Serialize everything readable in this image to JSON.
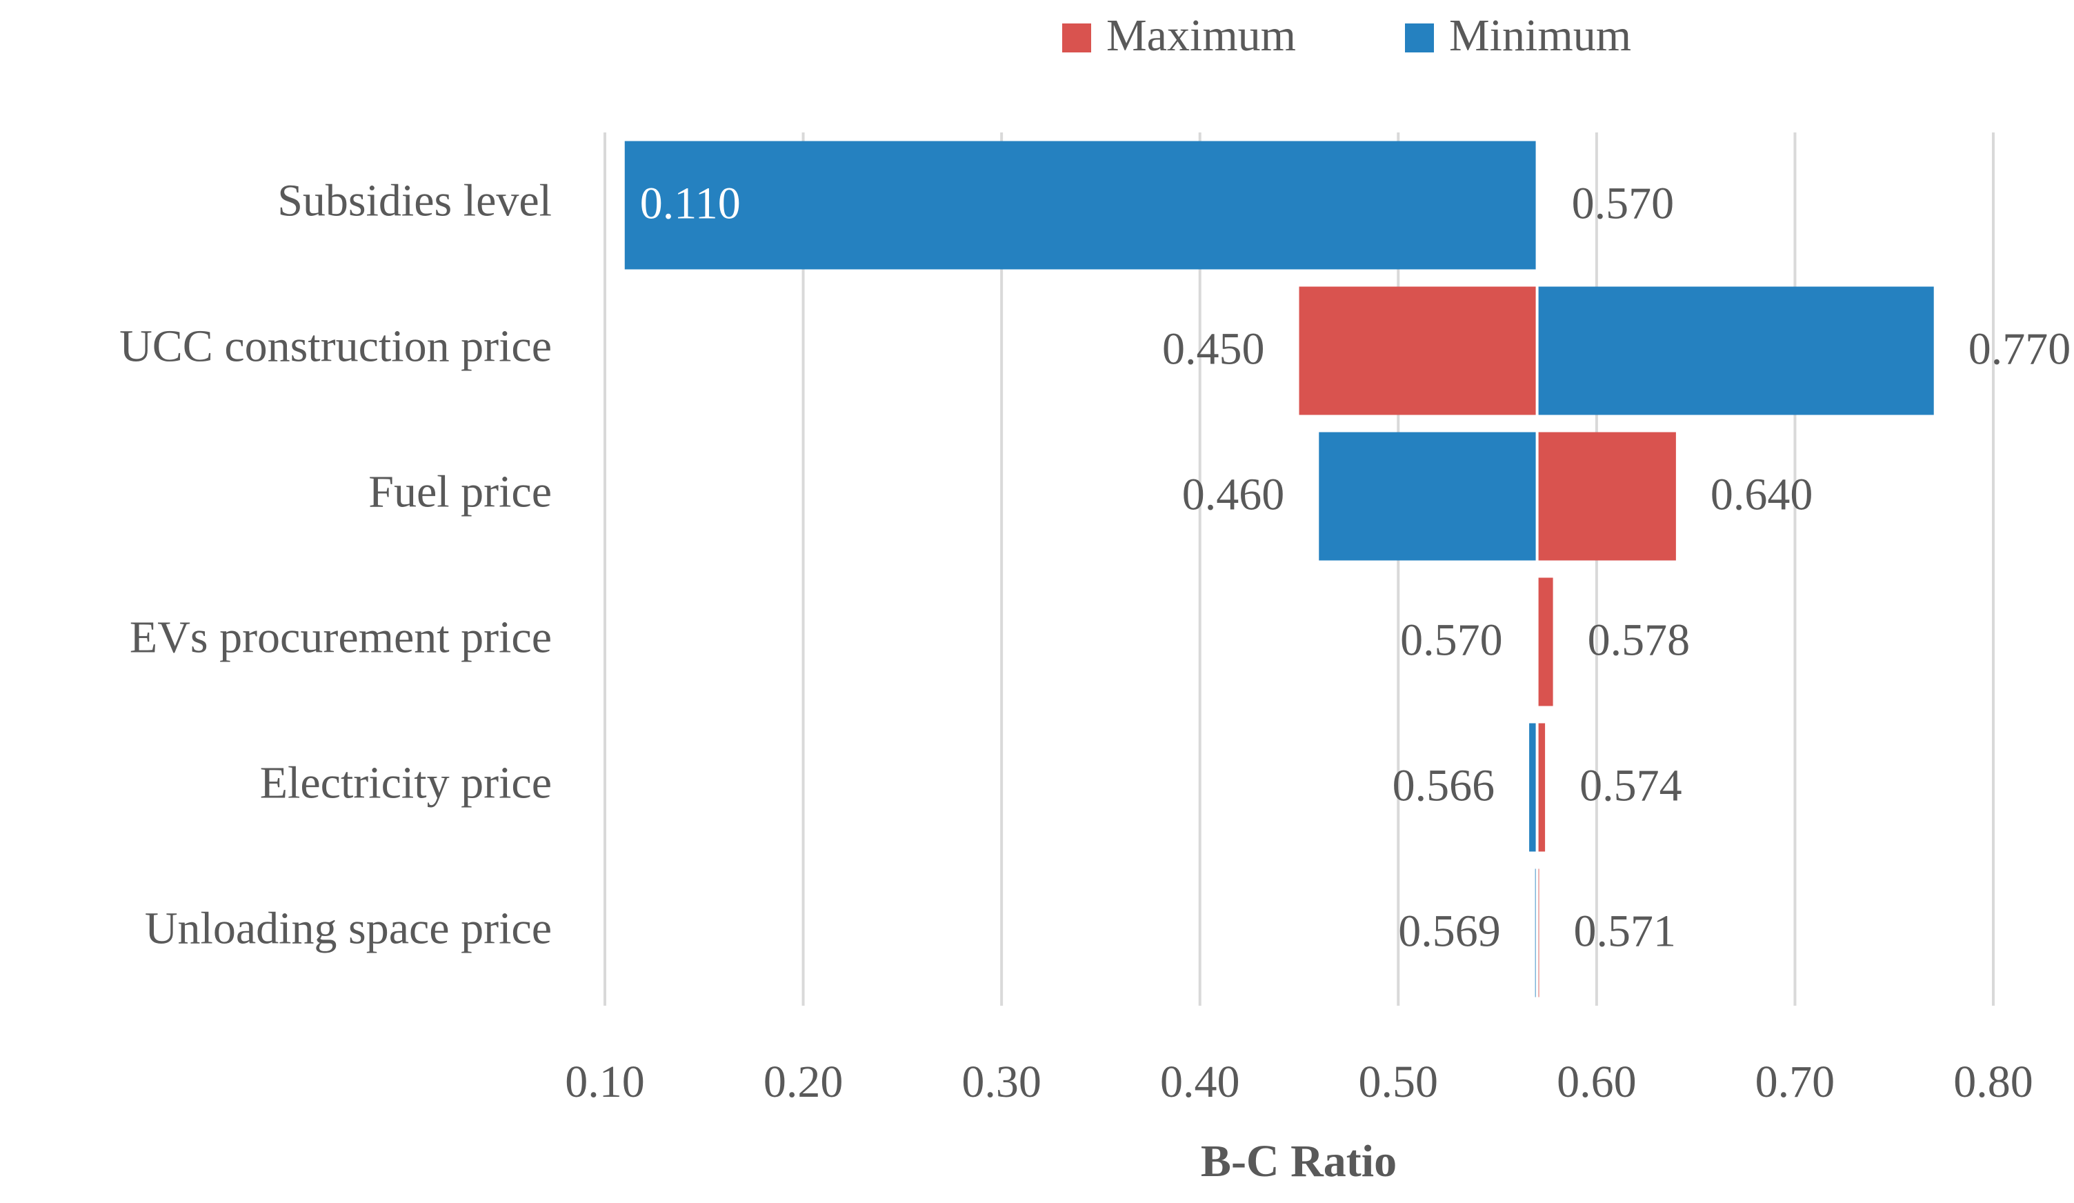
{
  "chart_data": {
    "type": "tornado",
    "categories": [
      "Subsidies level",
      "UCC construction price",
      "Fuel price",
      "EVs procurement price",
      "Electricity price",
      "Unloading space price"
    ],
    "base": 0.57,
    "series": [
      {
        "name": "Maximum",
        "color": "#d9534f",
        "values": [
          0.57,
          0.45,
          0.64,
          0.578,
          0.574,
          0.571
        ],
        "value_labels": [
          "0.570",
          "0.450",
          "0.640",
          "0.578",
          "0.574",
          "0.571"
        ]
      },
      {
        "name": "Minimum",
        "color": "#2581c0",
        "values": [
          0.11,
          0.77,
          0.46,
          0.57,
          0.566,
          0.569
        ],
        "value_labels": [
          "0.110",
          "0.770",
          "0.460",
          "0.570",
          "0.566",
          "0.569"
        ]
      }
    ],
    "xlim": [
      0.1,
      0.8
    ],
    "xticks": [
      {
        "value": 0.1,
        "label": "0.10"
      },
      {
        "value": 0.2,
        "label": "0.20"
      },
      {
        "value": 0.3,
        "label": "0.30"
      },
      {
        "value": 0.4,
        "label": "0.40"
      },
      {
        "value": 0.5,
        "label": "0.50"
      },
      {
        "value": 0.6,
        "label": "0.60"
      },
      {
        "value": 0.7,
        "label": "0.70"
      },
      {
        "value": 0.8,
        "label": "0.80"
      }
    ],
    "xlabel": "B-C Ratio",
    "grid": true,
    "legend": "top"
  }
}
